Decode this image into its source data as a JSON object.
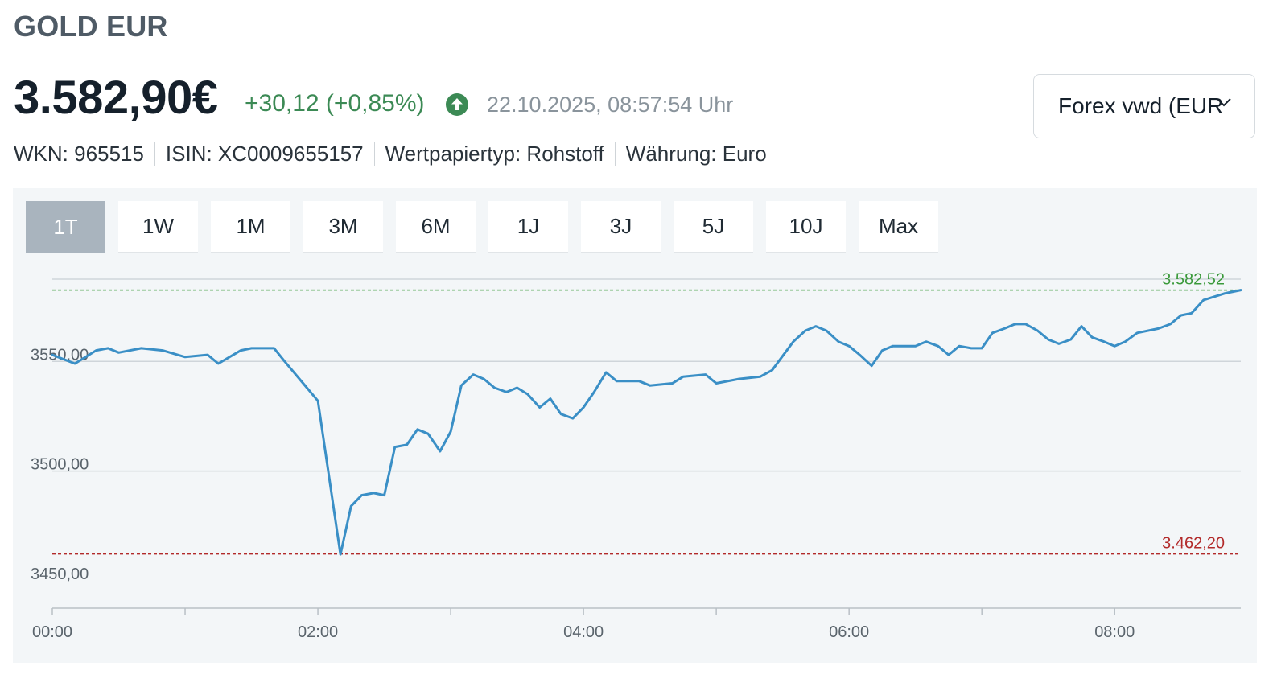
{
  "asset": {
    "title": "GOLD EUR",
    "price": "3.582,90€",
    "change": "+30,12 (+0,85%)",
    "trend_icon": "arrow-up-circle-icon",
    "timestamp": "22.10.2025, 08:57:54 Uhr"
  },
  "exchange": {
    "selected": "Forex vwd (EUR"
  },
  "meta": [
    "WKN: 965515",
    "ISIN: XC0009655157",
    "Wertpapiertyp: Rohstoff",
    "Währung: Euro"
  ],
  "ranges": {
    "active": "1T",
    "items": [
      "1T",
      "1W",
      "1M",
      "3M",
      "6M",
      "1J",
      "3J",
      "5J",
      "10J",
      "Max"
    ]
  },
  "colors": {
    "line": "#3a8fc6",
    "positive": "#3c8a55",
    "high_line": "#3b9a3b",
    "low_line": "#b22a2a",
    "active_range": "#a9b4be",
    "panel_bg": "#f3f6f8"
  },
  "chart_data": {
    "type": "line",
    "ylim": [
      3437.5,
      3587.5
    ],
    "y_ticks": [
      {
        "value": 3450,
        "label": "3450,00"
      },
      {
        "value": 3500,
        "label": "3500,00"
      },
      {
        "value": 3550,
        "label": "3550,00"
      }
    ],
    "x_ticks": [
      "00:00",
      "02:00",
      "04:00",
      "06:00",
      "08:00"
    ],
    "high": {
      "value": 3582.52,
      "label": "3.582,52"
    },
    "low": {
      "value": 3462.2,
      "label": "3.462,20"
    },
    "x_range_hours": [
      0,
      8.95
    ],
    "series": [
      {
        "values": [
          [
            0.0,
            3553
          ],
          [
            0.17,
            3549
          ],
          [
            0.33,
            3555
          ],
          [
            0.42,
            3556
          ],
          [
            0.5,
            3554
          ],
          [
            0.67,
            3556
          ],
          [
            0.83,
            3555
          ],
          [
            1.0,
            3552
          ],
          [
            1.17,
            3553
          ],
          [
            1.25,
            3549
          ],
          [
            1.42,
            3555
          ],
          [
            1.5,
            3556
          ],
          [
            1.67,
            3556
          ],
          [
            1.75,
            3550
          ],
          [
            2.0,
            3532
          ],
          [
            2.17,
            3462
          ],
          [
            2.25,
            3484
          ],
          [
            2.33,
            3489
          ],
          [
            2.42,
            3490
          ],
          [
            2.5,
            3489
          ],
          [
            2.58,
            3511
          ],
          [
            2.67,
            3512
          ],
          [
            2.75,
            3519
          ],
          [
            2.83,
            3517
          ],
          [
            2.92,
            3509
          ],
          [
            3.0,
            3518
          ],
          [
            3.08,
            3539
          ],
          [
            3.17,
            3544
          ],
          [
            3.25,
            3542
          ],
          [
            3.33,
            3538
          ],
          [
            3.42,
            3536
          ],
          [
            3.5,
            3538
          ],
          [
            3.58,
            3535
          ],
          [
            3.67,
            3529
          ],
          [
            3.75,
            3533
          ],
          [
            3.83,
            3526
          ],
          [
            3.92,
            3524
          ],
          [
            4.0,
            3529
          ],
          [
            4.08,
            3536
          ],
          [
            4.17,
            3545
          ],
          [
            4.25,
            3541
          ],
          [
            4.42,
            3541
          ],
          [
            4.5,
            3539
          ],
          [
            4.67,
            3540
          ],
          [
            4.75,
            3543
          ],
          [
            4.92,
            3544
          ],
          [
            5.0,
            3540
          ],
          [
            5.17,
            3542
          ],
          [
            5.33,
            3543
          ],
          [
            5.42,
            3546
          ],
          [
            5.58,
            3559
          ],
          [
            5.67,
            3564
          ],
          [
            5.75,
            3566
          ],
          [
            5.83,
            3564
          ],
          [
            5.92,
            3559
          ],
          [
            6.0,
            3557
          ],
          [
            6.08,
            3553
          ],
          [
            6.17,
            3548
          ],
          [
            6.25,
            3555
          ],
          [
            6.33,
            3557
          ],
          [
            6.5,
            3557
          ],
          [
            6.58,
            3559
          ],
          [
            6.67,
            3557
          ],
          [
            6.75,
            3553
          ],
          [
            6.83,
            3557
          ],
          [
            6.92,
            3556
          ],
          [
            7.0,
            3556
          ],
          [
            7.08,
            3563
          ],
          [
            7.17,
            3565
          ],
          [
            7.25,
            3567
          ],
          [
            7.33,
            3567
          ],
          [
            7.42,
            3564
          ],
          [
            7.5,
            3560
          ],
          [
            7.58,
            3558
          ],
          [
            7.67,
            3560
          ],
          [
            7.75,
            3566
          ],
          [
            7.83,
            3561
          ],
          [
            7.92,
            3559
          ],
          [
            8.0,
            3557
          ],
          [
            8.08,
            3559
          ],
          [
            8.17,
            3563
          ],
          [
            8.33,
            3565
          ],
          [
            8.42,
            3567
          ],
          [
            8.5,
            3571
          ],
          [
            8.58,
            3572
          ],
          [
            8.67,
            3578
          ],
          [
            8.83,
            3581
          ],
          [
            8.95,
            3582.5
          ]
        ]
      }
    ]
  }
}
